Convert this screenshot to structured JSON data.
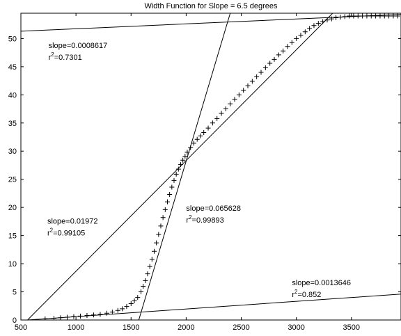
{
  "chart_data": {
    "type": "scatter",
    "title": "Width Function for Slope = 6.5 degrees",
    "xlabel": "",
    "ylabel": "",
    "xlim": [
      500,
      3950
    ],
    "ylim": [
      0,
      54.5
    ],
    "grid": false,
    "x_ticks": [
      500,
      1000,
      1500,
      2000,
      2500,
      3000,
      3500
    ],
    "y_ticks": [
      0,
      5,
      10,
      15,
      20,
      25,
      30,
      35,
      40,
      45,
      50
    ],
    "marker": "+",
    "series": [
      {
        "values_x": [
          720,
          800,
          860,
          920,
          980,
          1040,
          1100,
          1160,
          1220,
          1280,
          1330,
          1380,
          1420,
          1460,
          1500,
          1530,
          1560,
          1590,
          1610,
          1630,
          1650,
          1670,
          1690,
          1710,
          1730,
          1750,
          1770,
          1790,
          1810,
          1830,
          1850,
          1870,
          1890,
          1910,
          1930,
          1950,
          1970,
          1990,
          2010,
          2040,
          2070,
          2100,
          2130,
          2160,
          2200,
          2240,
          2280,
          2320,
          2360,
          2400,
          2440,
          2480,
          2520,
          2560,
          2600,
          2640,
          2680,
          2720,
          2760,
          2800,
          2840,
          2880,
          2920,
          2960,
          3000,
          3040,
          3080,
          3120,
          3160,
          3200,
          3240,
          3280,
          3320,
          3360,
          3400,
          3440,
          3480,
          3520,
          3560,
          3600,
          3640,
          3680,
          3720,
          3760,
          3800,
          3840,
          3880,
          3920
        ],
        "values_y": [
          0.2,
          0.3,
          0.4,
          0.5,
          0.6,
          0.7,
          0.8,
          0.9,
          1.0,
          1.2,
          1.4,
          1.7,
          2.0,
          2.4,
          2.9,
          3.4,
          4.0,
          5.0,
          6.0,
          7.0,
          8.2,
          9.5,
          10.8,
          12.2,
          13.7,
          15.2,
          16.7,
          18.2,
          19.6,
          21.0,
          22.3,
          23.6,
          24.8,
          25.9,
          26.8,
          27.6,
          28.4,
          29.1,
          29.8,
          30.6,
          31.4,
          32.1,
          32.7,
          33.3,
          34.1,
          35.0,
          35.8,
          36.7,
          37.5,
          38.4,
          39.2,
          40.0,
          40.8,
          41.6,
          42.4,
          43.2,
          44.0,
          44.8,
          45.6,
          46.3,
          47.1,
          47.8,
          48.6,
          49.3,
          50.0,
          50.6,
          51.2,
          51.8,
          52.3,
          52.7,
          53.0,
          53.3,
          53.5,
          53.7,
          53.8,
          53.9,
          54.0,
          54.0,
          54.0,
          54.0,
          54.0,
          54.0,
          54.0,
          54.0,
          54.0,
          54.0,
          54.0,
          54.0
        ]
      }
    ],
    "fit_lines": [
      {
        "x": [
          500,
          3950
        ],
        "y": [
          51.3,
          54.3
        ]
      },
      {
        "x": [
          560,
          3330
        ],
        "y": [
          0,
          54.5
        ]
      },
      {
        "x": [
          1570,
          2400
        ],
        "y": [
          0,
          54.5
        ]
      },
      {
        "x": [
          560,
          3950
        ],
        "y": [
          0,
          4.6
        ]
      }
    ],
    "annotations": [
      {
        "slope": "slope=0.0008617",
        "r2_value": "=0.7301",
        "x": 750,
        "y": 48.3
      },
      {
        "slope": "slope=0.065628",
        "r2_value": "=0.99893",
        "x": 2000,
        "y": 19.4
      },
      {
        "slope": "slope=0.01972",
        "r2_value": "=0.99105",
        "x": 740,
        "y": 17.1
      },
      {
        "slope": "slope=0.0013646",
        "r2_value": "=0.852",
        "x": 2960,
        "y": 6.2
      }
    ],
    "r2_base": "r",
    "r2_exponent": "2"
  }
}
